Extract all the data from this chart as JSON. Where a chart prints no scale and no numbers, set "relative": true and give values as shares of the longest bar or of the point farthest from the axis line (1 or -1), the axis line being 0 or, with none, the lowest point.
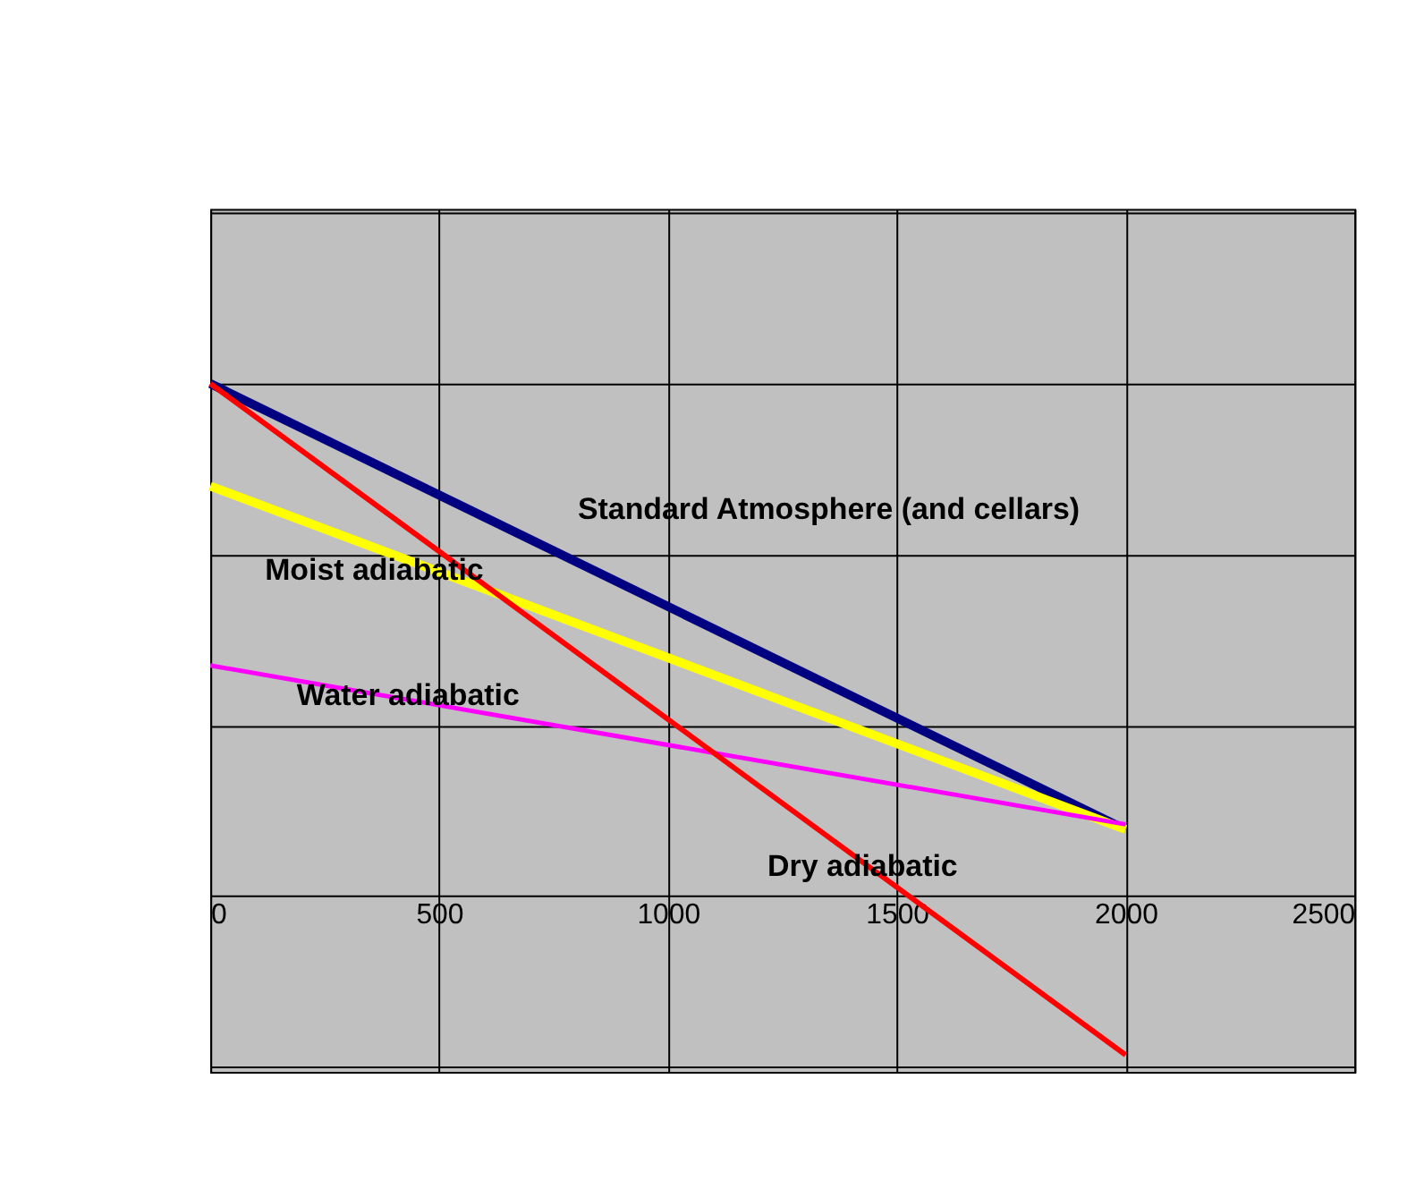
{
  "chart_data": {
    "type": "line",
    "relative": true,
    "x": [
      0,
      2000
    ],
    "xlim": [
      0,
      2500
    ],
    "xticks": [
      0,
      500,
      1000,
      1500,
      2000,
      2500
    ],
    "grid": true,
    "marker": "none",
    "line_style": "solid",
    "series": [
      {
        "name": "Standard Atmosphere (and cellars)",
        "color": "#000080",
        "values": [
          1,
          0.13
        ]
      },
      {
        "name": "Moist adiabatic",
        "color": "#ffff00",
        "values": [
          0.8,
          0.13
        ]
      },
      {
        "name": "Water adiabatic",
        "color": "#ff00ff",
        "values": [
          0.45,
          0.14
        ]
      },
      {
        "name": "Dry adiabatic",
        "color": "#ff0000",
        "values": [
          1,
          -0.31
        ]
      }
    ]
  }
}
